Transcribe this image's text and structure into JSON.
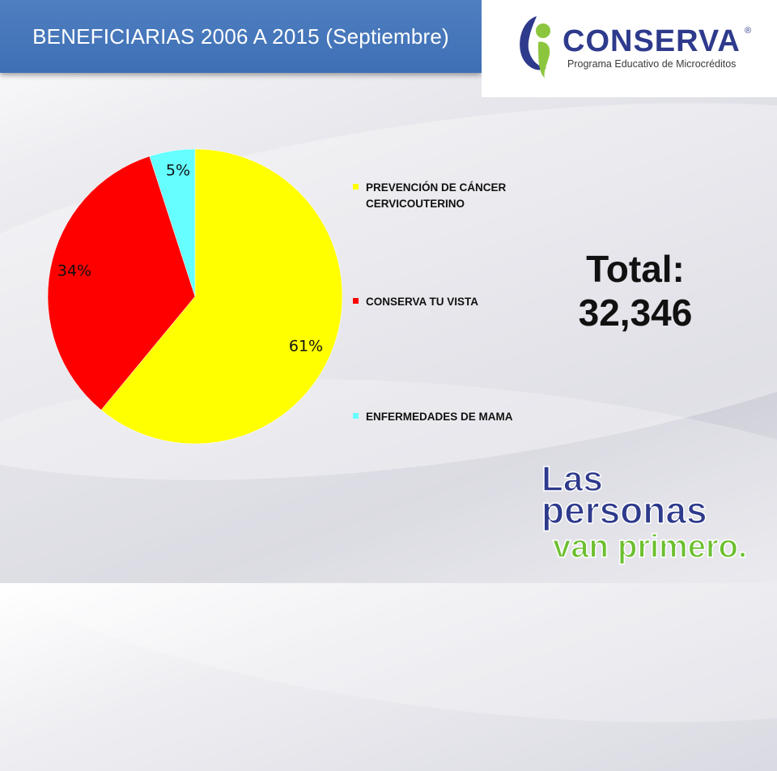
{
  "title": "BENEFICIARIAS 2006 A 2015 (Septiembre)",
  "logo": {
    "name": "CONSERVA",
    "registered": "®",
    "tagline": "Programa Educativo de Microcréditos"
  },
  "chart_data": {
    "type": "pie",
    "categories": [
      "PREVENCIÓN DE CÁNCER CERVICOUTERINO",
      "CONSERVA TU VISTA",
      "ENFERMEDADES DE MAMA"
    ],
    "values": [
      61,
      34,
      5
    ],
    "data_labels": [
      "61%",
      "34%",
      "5%"
    ],
    "colors": [
      "#ffff00",
      "#ff0000",
      "#66ffff"
    ],
    "legend_placement": "right"
  },
  "legend": {
    "items": [
      {
        "label": "PREVENCIÓN DE CÁNCER CERVICOUTERINO",
        "color": "#ffff00"
      },
      {
        "label": "CONSERVA TU VISTA",
        "color": "#ff0000"
      },
      {
        "label": "ENFERMEDADES DE MAMA",
        "color": "#66ffff"
      }
    ]
  },
  "total": {
    "label": "Total:",
    "value": "32,346"
  },
  "slogan": {
    "line1": "Las",
    "line2": "personas",
    "line3": "van primero."
  }
}
